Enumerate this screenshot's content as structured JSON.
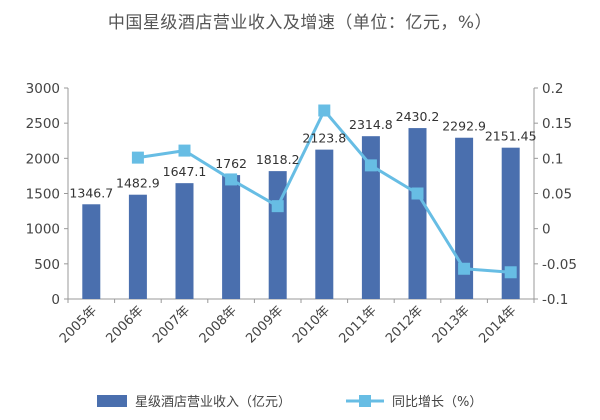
{
  "chart_data": {
    "type": "bar+line",
    "title": "中国星级酒店营业收入及增速（单位：亿元，%）",
    "categories": [
      "2005年",
      "2006年",
      "2007年",
      "2008年",
      "2009年",
      "2010年",
      "2011年",
      "2012年",
      "2013年",
      "2014年"
    ],
    "series": [
      {
        "name": "星级酒店营业收入（亿元）",
        "type": "bar",
        "axis": "left",
        "values": [
          1346.7,
          1482.9,
          1647.1,
          1762,
          1818.2,
          2123.8,
          2314.8,
          2430.2,
          2292.9,
          2151.45
        ],
        "labels": [
          "1346.7",
          "1482.9",
          "1647.1",
          "1762",
          "1818.2",
          "2123.8",
          "2314.8",
          "2430.2",
          "2292.9",
          "2151.45"
        ],
        "color": "#4a6fae"
      },
      {
        "name": "同比增长（%）",
        "type": "line",
        "axis": "right",
        "values": [
          null,
          0.101,
          0.111,
          0.07,
          0.032,
          0.168,
          0.09,
          0.05,
          -0.057,
          -0.062
        ],
        "color": "#67bde4"
      }
    ],
    "y_left": {
      "ylim": [
        0,
        3000
      ],
      "ticks": [
        "0",
        "500",
        "1000",
        "1500",
        "2000",
        "2500",
        "3000"
      ]
    },
    "y_right": {
      "ylim": [
        -0.1,
        0.2
      ],
      "ticks": [
        "-0.1",
        "-0.05",
        "0",
        "0.05",
        "0.1",
        "0.15",
        "0.2"
      ]
    },
    "legend": "bottom",
    "grid": false
  }
}
